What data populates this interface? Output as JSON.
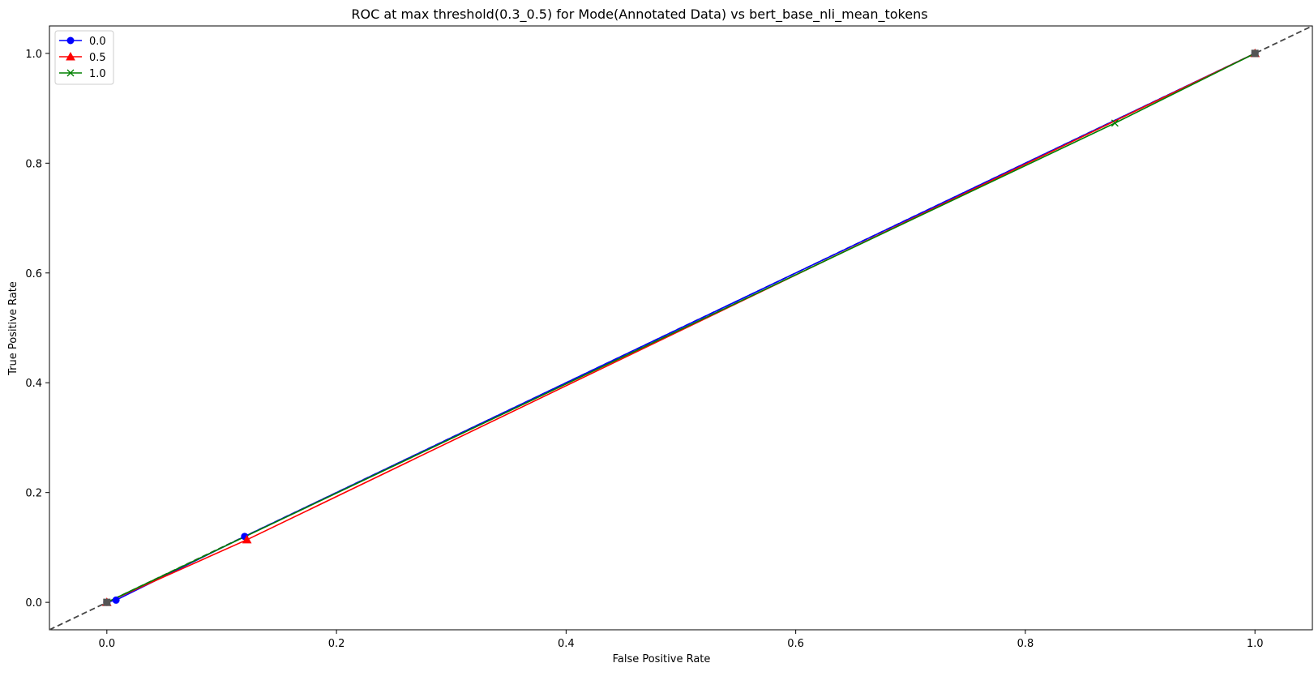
{
  "chart_data": {
    "type": "line",
    "title": "ROC at max threshold(0.3_0.5) for Mode(Annotated Data) vs bert_base_nli_mean_tokens",
    "xlabel": "False Positive Rate",
    "ylabel": "True Positive Rate",
    "xlim": [
      -0.05,
      1.05
    ],
    "ylim": [
      -0.05,
      1.05
    ],
    "xticks": [
      "0.0",
      "0.2",
      "0.4",
      "0.6",
      "0.8",
      "1.0"
    ],
    "yticks": [
      "0.0",
      "0.2",
      "0.4",
      "0.6",
      "0.8",
      "1.0"
    ],
    "grid": false,
    "legend_position": "upper-left",
    "series": [
      {
        "name": "0.0",
        "color": "#0000ff",
        "marker": "circle",
        "x": [
          0.0,
          0.008,
          0.12,
          1.0
        ],
        "y": [
          0.0,
          0.004,
          0.12,
          1.0
        ]
      },
      {
        "name": "0.5",
        "color": "#ff0000",
        "marker": "triangle",
        "x": [
          0.0,
          0.122,
          1.0
        ],
        "y": [
          0.0,
          0.114,
          1.0
        ]
      },
      {
        "name": "1.0",
        "color": "#008000",
        "marker": "x",
        "x": [
          0.0,
          0.878,
          1.0
        ],
        "y": [
          0.0,
          0.873,
          1.0
        ]
      }
    ],
    "reference_line": {
      "style": "dashed",
      "color": "#444444",
      "x": [
        -0.05,
        1.05
      ],
      "y": [
        -0.05,
        1.05
      ]
    },
    "end_markers": {
      "color": "#555555",
      "marker": "square",
      "x": [
        0.0,
        1.0
      ],
      "y": [
        0.0,
        1.0
      ]
    }
  }
}
